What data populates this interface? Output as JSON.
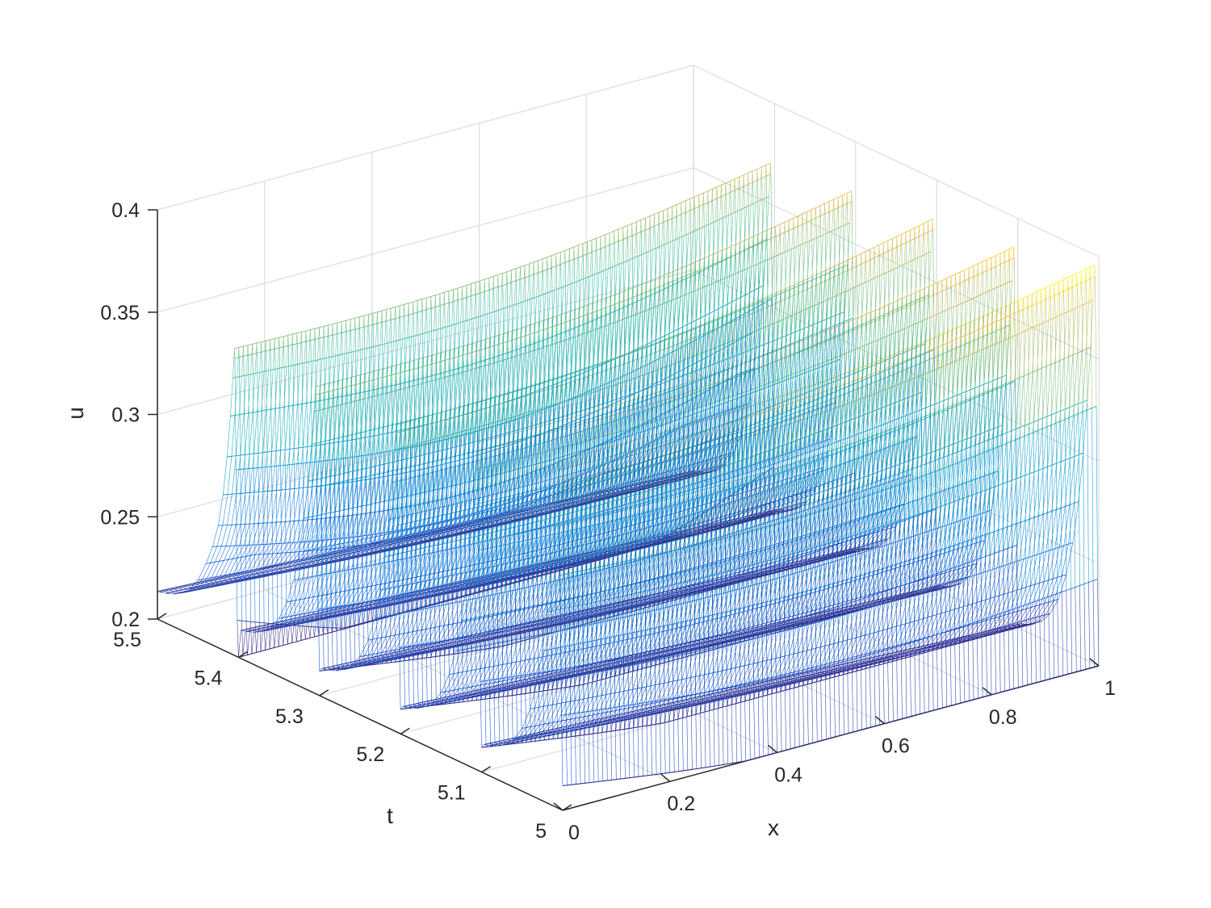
{
  "chart_data": {
    "type": "mesh",
    "x": {
      "label": "x",
      "ticks": [
        0,
        0.2,
        0.4,
        0.6,
        0.8,
        1
      ],
      "tick_labels": [
        "0",
        "0.2",
        "0.4",
        "0.6",
        "0.8",
        "1"
      ],
      "lim": [
        0,
        1
      ]
    },
    "t": {
      "label": "t",
      "ticks": [
        5,
        5.1,
        5.2,
        5.3,
        5.4,
        5.5
      ],
      "tick_labels": [
        "5",
        "5.1",
        "5.2",
        "5.3",
        "5.4",
        "5.5"
      ],
      "lim": [
        5,
        5.5
      ]
    },
    "u": {
      "label": "u",
      "ticks": [
        0.2,
        0.25,
        0.3,
        0.35,
        0.4
      ],
      "tick_labels": [
        "0.2",
        "0.25",
        "0.3",
        "0.35",
        "0.4"
      ],
      "lim": [
        0.2,
        0.4
      ]
    },
    "grid": true,
    "box": false,
    "colormap": "parula",
    "pulses": {
      "count": 5,
      "period": 0.1,
      "x_start_values": [
        0.295,
        0.35,
        0.3,
        0.25,
        0.18
      ],
      "x_end_values": [
        0.27,
        0.33,
        0.34,
        0.26,
        0.27
      ],
      "trough_values": [
        0.2,
        0.2,
        0.2,
        0.2,
        0.2
      ],
      "peak_values_at_x0": [
        0.37,
        0.36,
        0.35,
        0.35,
        0.35
      ],
      "peak_values_at_x1": [
        0.395,
        0.385,
        0.38,
        0.375,
        0.37
      ]
    },
    "colors": {
      "axes_line": "#262626",
      "grid_line": "#dcdcdc",
      "background": "#ffffff"
    }
  }
}
